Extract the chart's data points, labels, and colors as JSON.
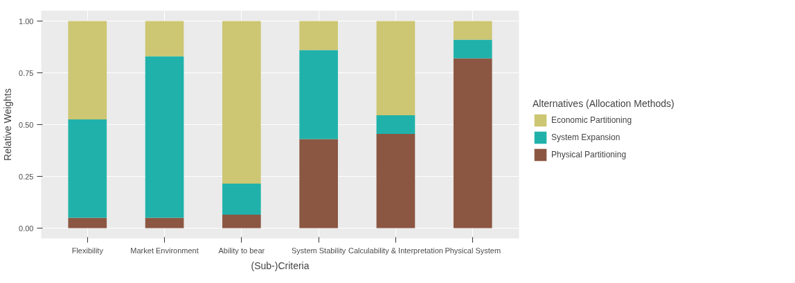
{
  "chart_data": {
    "type": "bar",
    "stacked": true,
    "xlabel": "(Sub-)Criteria",
    "ylabel": "Relative Weights",
    "legend_title": "Alternatives (Allocation Methods)",
    "categories": [
      "Flexibility",
      "Market Environment",
      "Ability to bear",
      "System Stability",
      "Calculability & Interpretation",
      "Physical System"
    ],
    "series": [
      {
        "name": "Physical Partitioning",
        "color": "#8b5742",
        "values": [
          0.05,
          0.05,
          0.065,
          0.43,
          0.455,
          0.82
        ]
      },
      {
        "name": "System Expansion",
        "color": "#20b2aa",
        "values": [
          0.475,
          0.78,
          0.15,
          0.43,
          0.09,
          0.09
        ]
      },
      {
        "name": "Economic Partitioning",
        "color": "#cdc673",
        "values": [
          0.475,
          0.17,
          0.785,
          0.14,
          0.455,
          0.09
        ]
      }
    ],
    "ylim": [
      -0.05,
      1.05
    ],
    "yticks": [
      {
        "value": 0,
        "label": "0.00"
      },
      {
        "value": 0.25,
        "label": "0.25"
      },
      {
        "value": 0.5,
        "label": "0.50"
      },
      {
        "value": 0.75,
        "label": "0.75"
      },
      {
        "value": 1,
        "label": "1.00"
      }
    ],
    "grid": true,
    "legend": "right"
  }
}
